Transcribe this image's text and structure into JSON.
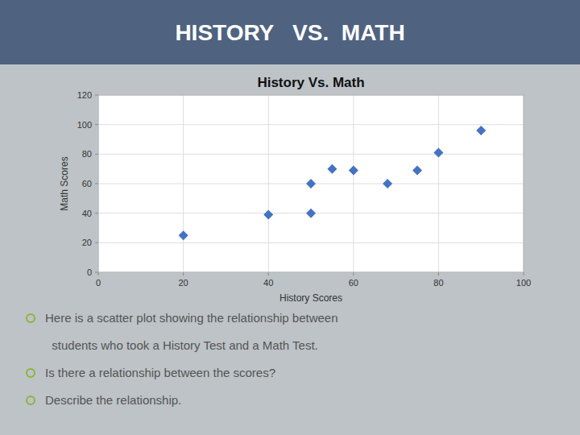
{
  "chart_data": {
    "type": "scatter",
    "title": "HISTORY   VS.  MATH",
    "subtitle": "History Vs. Math",
    "xlabel": "History Scores",
    "ylabel": "Math Scores",
    "x": [
      20,
      40,
      50,
      50,
      55,
      60,
      68,
      75,
      80,
      90
    ],
    "values": [
      25,
      39,
      60,
      40,
      70,
      69,
      60,
      69,
      81,
      96
    ],
    "xlim": [
      0,
      100
    ],
    "ylim": [
      0,
      120
    ],
    "xticks": [
      0,
      20,
      40,
      60,
      80,
      100
    ],
    "yticks": [
      0,
      20,
      40,
      60,
      80,
      100,
      120
    ],
    "color": "#4472C4",
    "marker": "diamond",
    "grid": true,
    "annotations": [
      "Here is a scatter plot showing the relationship between",
      "  students who took a History Test and a Math Test.",
      "Is there a relationship between the scores?",
      "Describe the relationship."
    ]
  }
}
